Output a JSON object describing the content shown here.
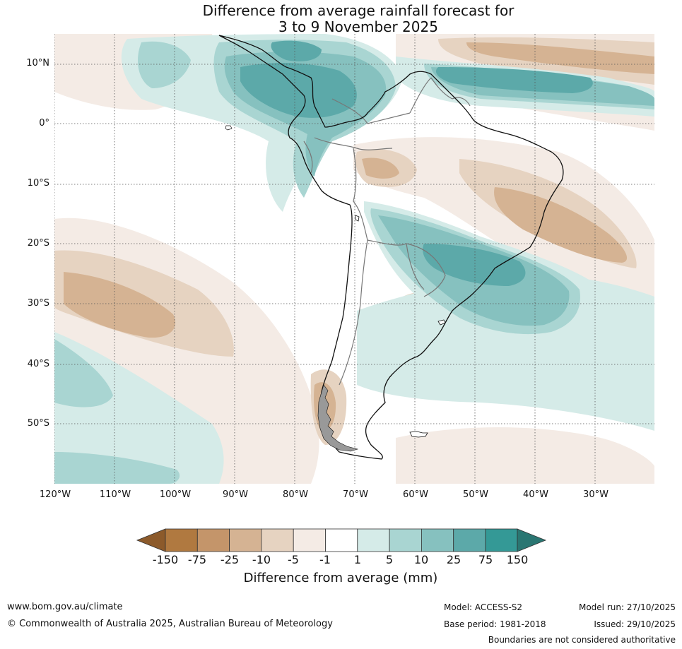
{
  "title": {
    "line1": "Difference from average rainfall forecast for",
    "line2": "3 to 9 November 2025"
  },
  "map": {
    "region": "South America",
    "latitude_labels": [
      "10°N",
      "0°",
      "10°S",
      "20°S",
      "30°S",
      "40°S",
      "50°S"
    ],
    "longitude_labels": [
      "120°W",
      "110°W",
      "100°W",
      "90°W",
      "80°W",
      "70°W",
      "60°W",
      "50°W",
      "40°W",
      "30°W"
    ],
    "gridline_style": "dotted"
  },
  "colorbar": {
    "title": "Difference from average (mm)",
    "ticks": [
      "-150",
      "-75",
      "-25",
      "-10",
      "-5",
      "-1",
      "1",
      "5",
      "10",
      "25",
      "75",
      "150"
    ],
    "colors": {
      "below_min": "#8c5a2b",
      "b_150_75": "#b07940",
      "b_75_25": "#c4956a",
      "b_25_10": "#d5b393",
      "b_10_5": "#e6d3c1",
      "b_5_1": "#f4ebe5",
      "b_1_1": "#ffffff",
      "b_1_5": "#d5ebe8",
      "b_5_10": "#a9d5d2",
      "b_10_25": "#86c1bf",
      "b_25_75": "#5ca9a9",
      "b_75_150": "#349996",
      "above_max": "#2a7672"
    }
  },
  "footer": {
    "website": "www.bom.gov.au/climate",
    "copyright": "© Commonwealth of Australia 2025, Australian Bureau of Meteorology",
    "model": "Model: ACCESS-S2",
    "base_period": "Base period: 1981-2018",
    "model_run": "Model run: 27/10/2025",
    "issued": "Issued: 29/10/2025",
    "disclaimer": "Boundaries are not considered authoritative"
  }
}
